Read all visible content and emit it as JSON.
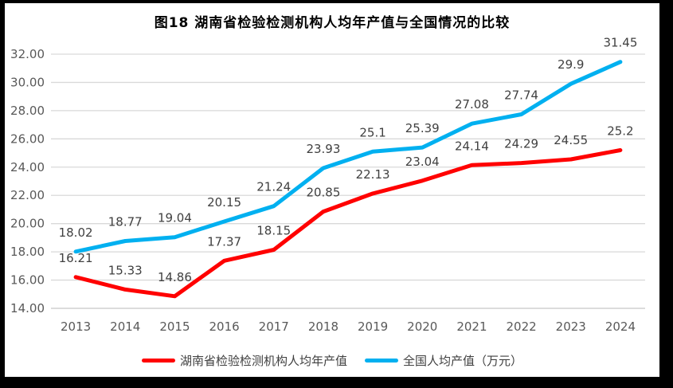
{
  "title": "图18 湖南省检验检测机构人均年产值与全国情况的比较",
  "chart_data": {
    "type": "line",
    "categories": [
      "2013",
      "2014",
      "2015",
      "2016",
      "2017",
      "2018",
      "2019",
      "2020",
      "2021",
      "2022",
      "2023",
      "2024"
    ],
    "series": [
      {
        "name": "湖南省检验检测机构人均年产值",
        "color": "#FF0000",
        "values": [
          16.21,
          15.33,
          14.86,
          17.37,
          18.15,
          20.85,
          22.13,
          23.04,
          24.14,
          24.29,
          24.55,
          25.2
        ],
        "labels": [
          "16.21",
          "15.33",
          "14.86",
          "17.37",
          "18.15",
          "20.85",
          "22.13",
          "23.04",
          "24.14",
          "24.29",
          "24.55",
          "25.2"
        ]
      },
      {
        "name": "全国人均产值（万元）",
        "color": "#00B0F0",
        "values": [
          18.02,
          18.77,
          19.04,
          20.15,
          21.24,
          23.93,
          25.1,
          25.39,
          27.08,
          27.74,
          29.9,
          31.45
        ],
        "labels": [
          "18.02",
          "18.77",
          "19.04",
          "20.15",
          "21.24",
          "23.93",
          "25.1",
          "25.39",
          "27.08",
          "27.74",
          "29.9",
          "31.45"
        ]
      }
    ],
    "ylim": [
      14,
      32
    ],
    "ytick_step": 2,
    "yticks": [
      "14.00",
      "16.00",
      "18.00",
      "20.00",
      "22.00",
      "24.00",
      "26.00",
      "28.00",
      "30.00",
      "32.00"
    ],
    "xlabel": "",
    "ylabel": "",
    "grid": true,
    "legend_position": "bottom",
    "colors": {
      "grid": "#D9D9D9",
      "axis_text": "#595959",
      "data_label_text": "#404040",
      "frame": "#000000",
      "background": "#FFFFFF"
    }
  }
}
